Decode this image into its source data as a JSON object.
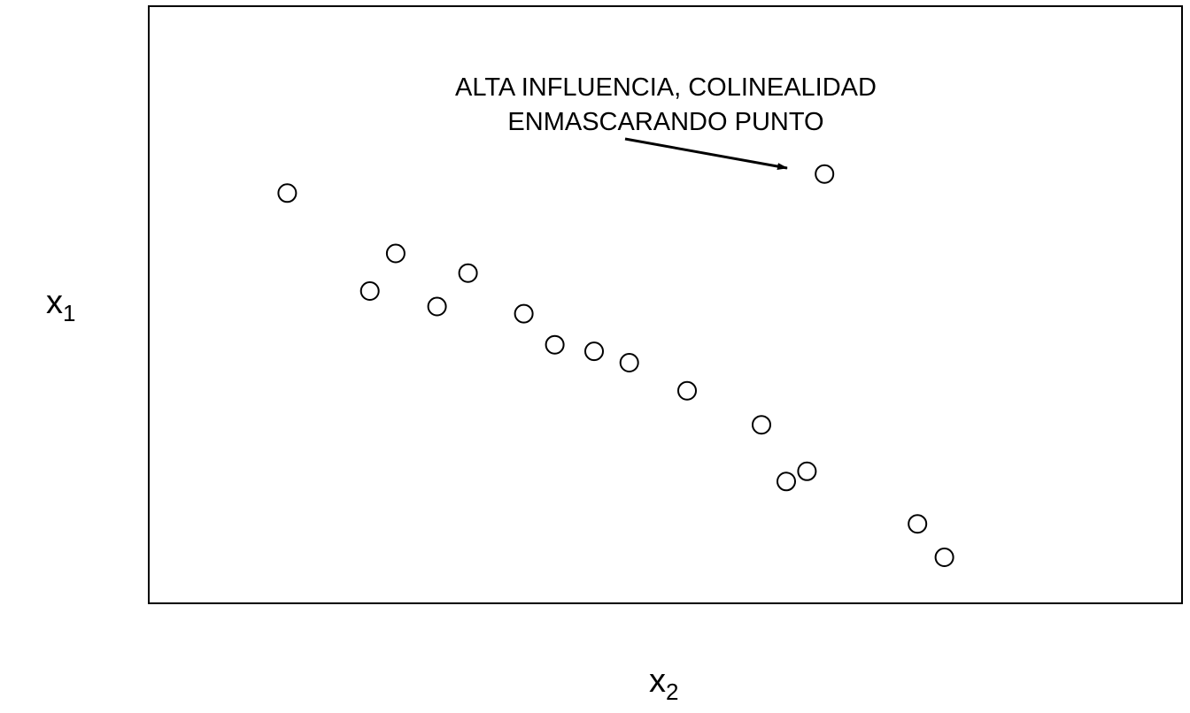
{
  "chart_data": {
    "type": "scatter",
    "title": "",
    "xlabel": {
      "main": "x",
      "sub": "2"
    },
    "ylabel": {
      "main": "x",
      "sub": "1"
    },
    "xlim": [
      0,
      100
    ],
    "ylim": [
      0,
      100
    ],
    "grid": false,
    "ticks": false,
    "points": [
      {
        "x": 13.4,
        "y": 68.7
      },
      {
        "x": 23.9,
        "y": 58.6
      },
      {
        "x": 21.4,
        "y": 52.3
      },
      {
        "x": 30.9,
        "y": 55.3
      },
      {
        "x": 27.9,
        "y": 49.7
      },
      {
        "x": 36.3,
        "y": 48.5
      },
      {
        "x": 39.3,
        "y": 43.3
      },
      {
        "x": 43.1,
        "y": 42.2
      },
      {
        "x": 46.5,
        "y": 40.3
      },
      {
        "x": 52.1,
        "y": 35.6
      },
      {
        "x": 59.3,
        "y": 29.9
      },
      {
        "x": 61.7,
        "y": 20.4
      },
      {
        "x": 63.7,
        "y": 22.1
      },
      {
        "x": 74.4,
        "y": 13.3
      },
      {
        "x": 77.0,
        "y": 7.7
      },
      {
        "x": 65.4,
        "y": 71.9,
        "highlight": true
      }
    ],
    "annotation": {
      "lines": [
        "ALTA INFLUENCIA, COLINEALIDAD",
        "ENMASCARANDO PUNTO"
      ],
      "arrow_to_point": 15
    }
  }
}
